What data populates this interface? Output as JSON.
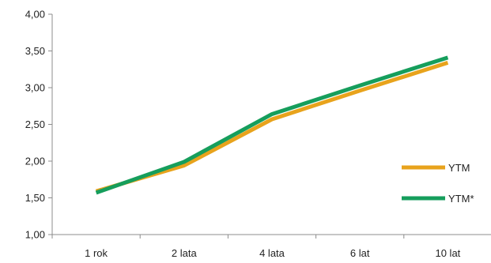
{
  "chart_data": {
    "type": "line",
    "categories": [
      "1 rok",
      "2 lata",
      "4 lata",
      "6 lat",
      "10 lat"
    ],
    "series": [
      {
        "name": "YTM",
        "values": [
          1.59,
          1.94,
          2.57,
          2.96,
          3.34
        ],
        "color": "#E8A31C"
      },
      {
        "name": "YTM*",
        "values": [
          1.57,
          1.99,
          2.64,
          3.03,
          3.41
        ],
        "color": "#169E5C"
      }
    ],
    "ylim": [
      1.0,
      4.0
    ],
    "yticks": [
      "1,00",
      "1,50",
      "2,00",
      "2,50",
      "3,00",
      "3,50",
      "4,00"
    ],
    "ytick_values": [
      1.0,
      1.5,
      2.0,
      2.5,
      3.0,
      3.5,
      4.0
    ],
    "grid": false,
    "legend_position": "right"
  }
}
